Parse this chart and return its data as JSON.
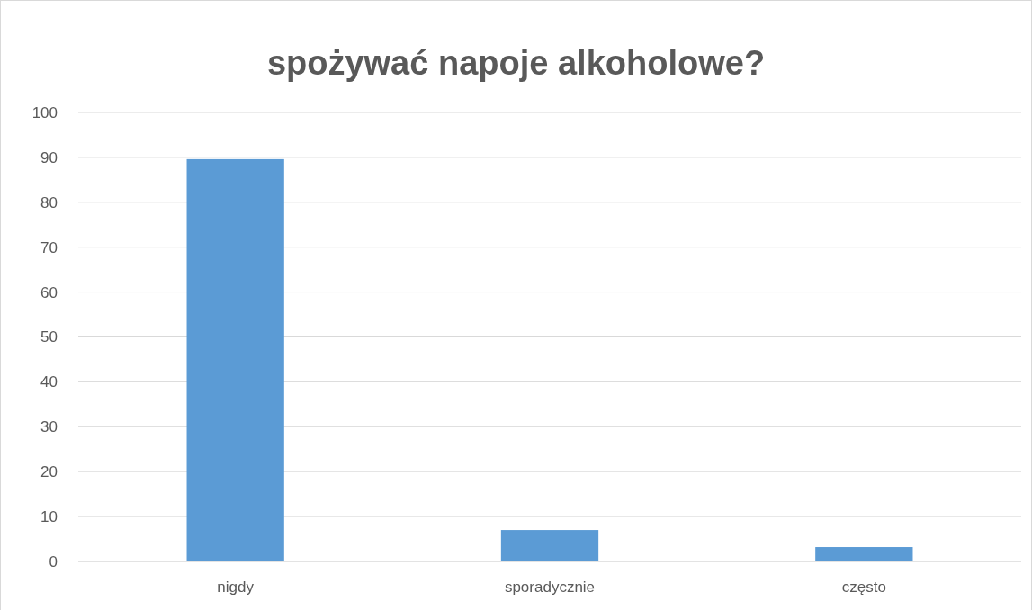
{
  "chart_data": {
    "type": "bar",
    "title": "spożywać napoje alkoholowe?",
    "categories": [
      "nigdy",
      "sporadycznie",
      "często"
    ],
    "values": [
      89.6,
      7,
      3.2
    ],
    "color": "#5b9bd5",
    "ylim": [
      0,
      100
    ],
    "yticks": [
      0,
      10,
      20,
      30,
      40,
      50,
      60,
      70,
      80,
      90,
      100
    ],
    "grid": "y"
  }
}
